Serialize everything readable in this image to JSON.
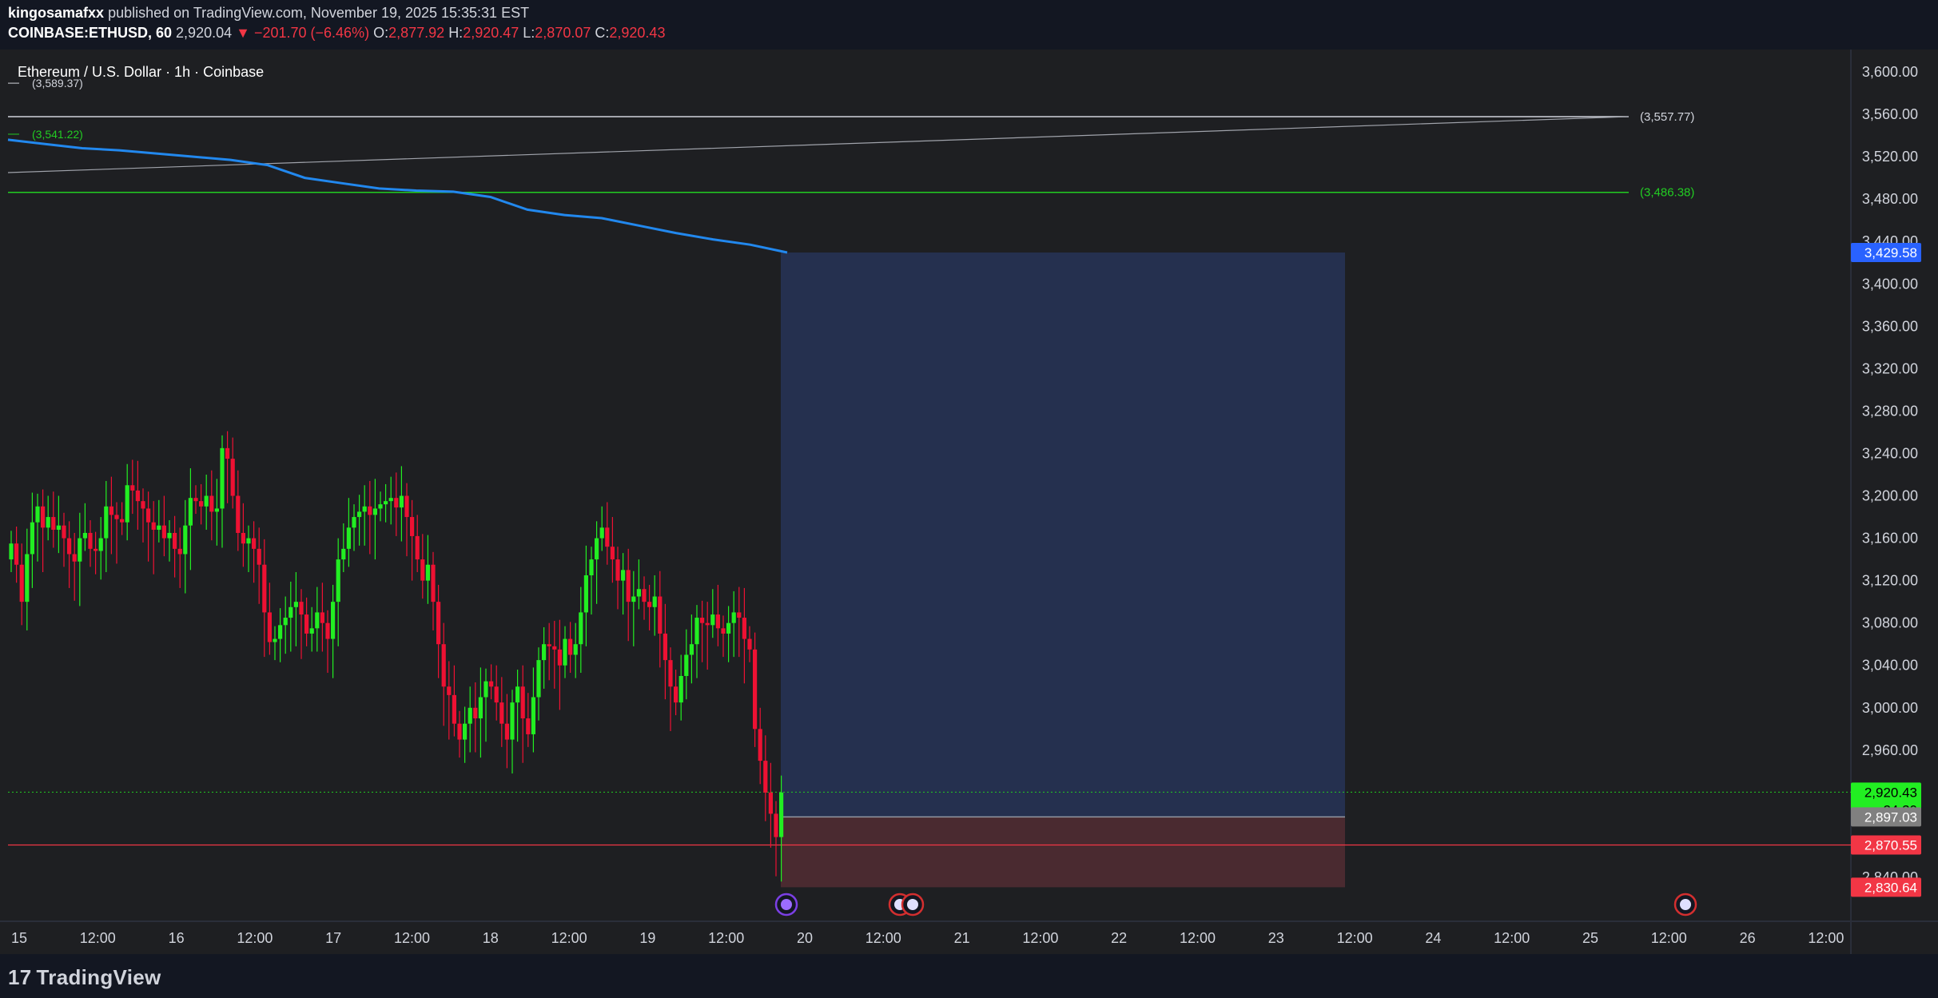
{
  "header": {
    "author": "kingosamafxx",
    "published_text": "published on TradingView.com, November 19, 2025 15:35:31 EST",
    "symbol": "COINBASE:ETHUSD, 60",
    "last": "2,920.04",
    "change": "▼ −201.70 (−6.46%)",
    "o_label": "O:",
    "o": "2,877.92",
    "h_label": "H:",
    "h": "2,920.47",
    "l_label": "L:",
    "l": "2,870.07",
    "c_label": "C:",
    "c": "2,920.43"
  },
  "pane_title": "Ethereum / U.S. Dollar · 1h · Coinbase",
  "footer": {
    "brand": "TradingView"
  },
  "colors": {
    "background": "#1e1f22",
    "up": "#22ee22",
    "down": "#ee1133",
    "vwap": "#2288ee",
    "target_zone": "#25304f",
    "stop_zone": "#4a2a30",
    "green_level": "#22cc22",
    "red_level": "#f23645"
  },
  "chart_data": {
    "type": "candlestick",
    "y_axis": {
      "ticks": [
        "3,600.00",
        "3,560.00",
        "3,520.00",
        "3,480.00",
        "3,440.00",
        "3,400.00",
        "3,360.00",
        "3,320.00",
        "3,280.00",
        "3,240.00",
        "3,200.00",
        "3,160.00",
        "3,120.00",
        "3,080.00",
        "3,040.00",
        "3,000.00",
        "2,960.00",
        "2,840.00"
      ],
      "tick_values": [
        3600,
        3560,
        3520,
        3480,
        3440,
        3400,
        3360,
        3320,
        3280,
        3240,
        3200,
        3160,
        3120,
        3080,
        3040,
        3000,
        2960,
        2840
      ],
      "range": [
        2810,
        3620
      ]
    },
    "x_axis": {
      "ticks": [
        "15",
        "12:00",
        "16",
        "12:00",
        "17",
        "12:00",
        "18",
        "12:00",
        "19",
        "12:00",
        "20",
        "12:00",
        "21",
        "12:00",
        "22",
        "12:00",
        "23",
        "12:00",
        "24",
        "12:00",
        "25",
        "12:00",
        "26",
        "12:00"
      ],
      "tick_times": [
        "2025-11-15 00:00",
        "2025-11-15 12:00",
        "2025-11-16 00:00",
        "2025-11-16 12:00",
        "2025-11-17 00:00",
        "2025-11-17 12:00",
        "2025-11-18 00:00",
        "2025-11-18 12:00",
        "2025-11-19 00:00",
        "2025-11-19 12:00",
        "2025-11-20 00:00",
        "2025-11-20 12:00",
        "2025-11-21 00:00",
        "2025-11-21 12:00",
        "2025-11-22 00:00",
        "2025-11-22 12:00",
        "2025-11-23 00:00",
        "2025-11-23 12:00",
        "2025-11-24 00:00",
        "2025-11-24 12:00",
        "2025-11-25 00:00",
        "2025-11-25 12:00",
        "2025-11-26 00:00",
        "2025-11-26 12:00"
      ],
      "range": [
        "2025-11-15 00:00",
        "2025-11-27 00:00"
      ]
    },
    "closes": [
      3155,
      3135,
      3100,
      3145,
      3175,
      3190,
      3170,
      3180,
      3168,
      3172,
      3160,
      3145,
      3138,
      3160,
      3165,
      3150,
      3148,
      3160,
      3190,
      3182,
      3178,
      3175,
      3210,
      3205,
      3195,
      3188,
      3175,
      3168,
      3172,
      3160,
      3165,
      3150,
      3145,
      3172,
      3198,
      3195,
      3190,
      3200,
      3185,
      3188,
      3245,
      3235,
      3200,
      3165,
      3155,
      3160,
      3150,
      3135,
      3090,
      3062,
      3065,
      3078,
      3085,
      3095,
      3100,
      3088,
      3070,
      3075,
      3090,
      3080,
      3065,
      3100,
      3140,
      3150,
      3170,
      3180,
      3185,
      3190,
      3182,
      3188,
      3192,
      3195,
      3198,
      3189,
      3200,
      3180,
      3162,
      3140,
      3120,
      3135,
      3100,
      3060,
      3020,
      3012,
      2985,
      2970,
      2985,
      3000,
      2990,
      3010,
      3025,
      3020,
      3005,
      2985,
      2970,
      3005,
      3020,
      2990,
      2975,
      3010,
      3045,
      3060,
      3058,
      3055,
      3040,
      3065,
      3050,
      3060,
      3090,
      3125,
      3140,
      3160,
      3170,
      3152,
      3140,
      3120,
      3130,
      3100,
      3105,
      3112,
      3100,
      3095,
      3105,
      3070,
      3045,
      3020,
      3005,
      3030,
      3050,
      3060,
      3085,
      3080,
      3078,
      3088,
      3075,
      3070,
      3080,
      3090,
      3085,
      3065,
      3055,
      2980,
      2950,
      2920,
      2900,
      2878,
      2920
    ],
    "price_lines": [
      {
        "label": "(3,589.37)",
        "value": 3589.37
      },
      {
        "label": "(3,557.77)",
        "value": 3557.77
      },
      {
        "label": "(3,541.22)",
        "value": 3541.22
      },
      {
        "label": "(3,486.38)",
        "value": 3486.38
      }
    ],
    "vwap_line_end": 3429.58,
    "position_tool": {
      "take_profit": 3429.58,
      "entry": 2897.03,
      "stop": 2830.64
    },
    "price_tags": [
      {
        "label": "3,429.58",
        "value": 3429.58,
        "color": "#2962ff"
      },
      {
        "label": "2,920.43",
        "sub": "24:30",
        "value": 2920.43,
        "color": "#22ee22"
      },
      {
        "label": "2,897.03",
        "value": 2897.03,
        "color": "#808080"
      },
      {
        "label": "2,870.55",
        "value": 2870.55,
        "color": "#f23645"
      },
      {
        "label": "2,830.64",
        "value": 2830.64,
        "color": "#f23645"
      }
    ]
  }
}
